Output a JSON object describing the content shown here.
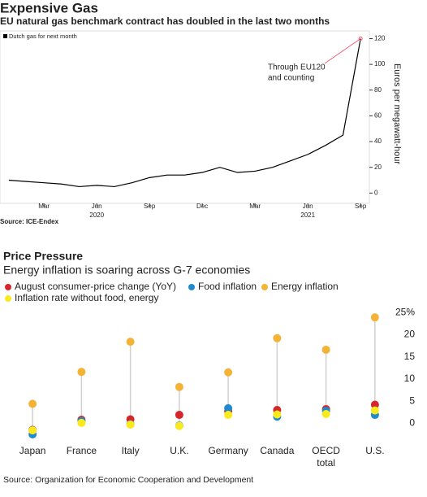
{
  "chart_data": [
    {
      "type": "line",
      "title": "Expensive Gas",
      "subtitle": "EU natural gas benchmark contract has doubled in the last two months",
      "y_label": "Euros per megawatt-hour",
      "source": "Source: ICE-Endex",
      "annotation": [
        "Through EU120",
        "and counting"
      ],
      "x": [
        "2020-01",
        "2020-02",
        "2020-03",
        "2020-04",
        "2020-05",
        "2020-06",
        "2020-07",
        "2020-08",
        "2020-09",
        "2020-10",
        "2020-11",
        "2020-12",
        "2021-01",
        "2021-02",
        "2021-03",
        "2021-04",
        "2021-05",
        "2021-06",
        "2021-07",
        "2021-08",
        "2021-09"
      ],
      "series": [
        {
          "name": "Dutch gas for next month",
          "color": "#000000",
          "values": [
            10,
            9,
            8,
            7,
            5,
            6,
            5,
            8,
            12,
            14,
            14,
            16,
            20,
            16,
            17,
            20,
            25,
            30,
            37,
            45,
            120
          ]
        }
      ],
      "xlim": [
        "2020-01",
        "2021-09"
      ],
      "xticks": [
        {
          "value": "2020-03",
          "label": "Mar"
        },
        {
          "value": "2020-06",
          "label": "Jun"
        },
        {
          "value": "2020-09",
          "label": "Sep"
        },
        {
          "value": "2020-12",
          "label": "Dec"
        },
        {
          "value": "2021-03",
          "label": "Mar"
        },
        {
          "value": "2021-06",
          "label": "Jun"
        },
        {
          "value": "2021-09",
          "label": "Sep"
        }
      ],
      "x_year_labels": [
        {
          "value": "2020-06",
          "label": "2020"
        },
        {
          "value": "2021-06",
          "label": "2021"
        }
      ],
      "ylim": [
        -8,
        126
      ],
      "yticks": [
        0,
        20,
        40,
        60,
        80,
        100,
        120
      ],
      "annotation_color": "#e8546b"
    },
    {
      "type": "dot",
      "title": "Price Pressure",
      "subtitle": "Energy inflation is soaring across G-7 economies",
      "source": "Source: Organization for Economic Cooperation and Development",
      "categories": [
        "Japan",
        "France",
        "Italy",
        "U.K.",
        "Germany",
        "Canada",
        "OECD total",
        "U.S."
      ],
      "series": [
        {
          "name": "August consumer-price change (YoY)",
          "color": "#d7262b",
          "values": [
            -0.4,
            1.9,
            2.0,
            3.0,
            3.9,
            4.1,
            4.3,
            5.3
          ]
        },
        {
          "name": "Food inflation",
          "color": "#1f8ad0",
          "values": [
            -1.4,
            1.6,
            0.9,
            0.6,
            4.5,
            2.6,
            3.9,
            3.0
          ]
        },
        {
          "name": "Energy inflation",
          "color": "#f5b335",
          "values": [
            5.5,
            12.7,
            19.5,
            9.3,
            12.6,
            20.3,
            17.7,
            25.0
          ]
        },
        {
          "name": "Inflation rate without food, energy",
          "color": "#f8ea1c",
          "values": [
            -0.5,
            1.2,
            0.8,
            0.5,
            3.0,
            3.1,
            3.2,
            4.0
          ]
        }
      ],
      "ylim": [
        -2.5,
        26.5
      ],
      "yticks": [
        0,
        5,
        10,
        15,
        20,
        {
          "value": 25,
          "label": "25%"
        }
      ]
    }
  ]
}
